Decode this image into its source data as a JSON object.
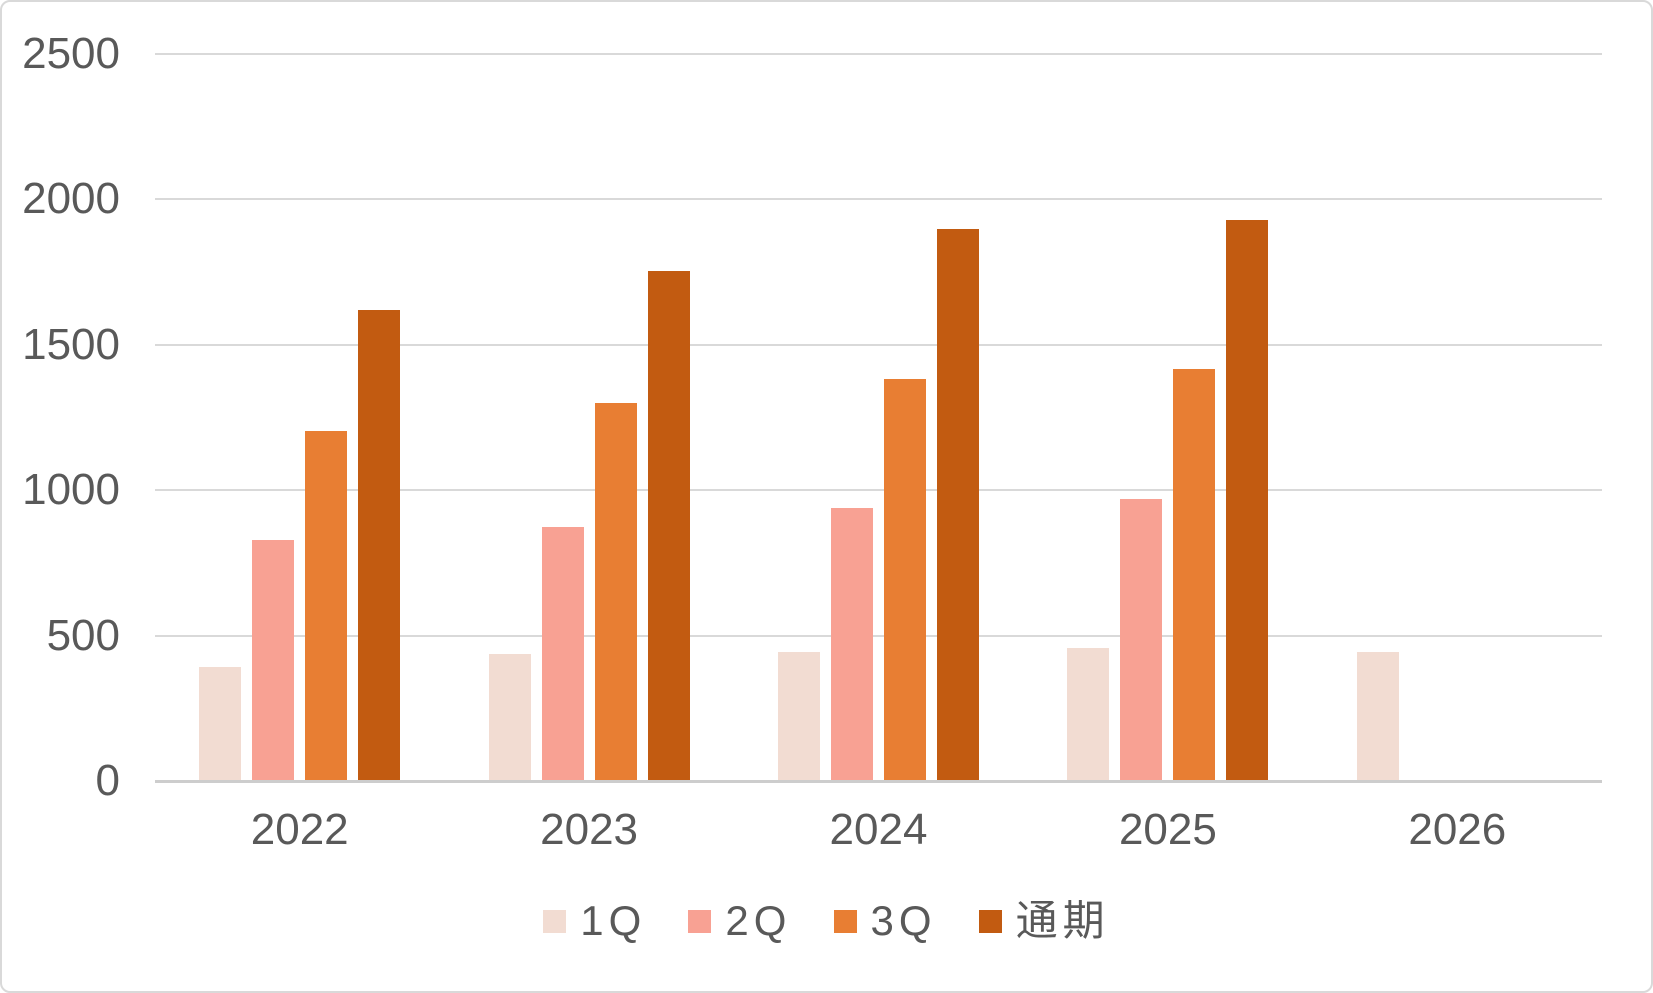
{
  "chart_data": {
    "type": "bar",
    "title": "",
    "categories": [
      "2022",
      "2023",
      "2024",
      "2025",
      "2026"
    ],
    "series": [
      {
        "name": "1Q",
        "color": "#f2dcd2",
        "values": [
          390,
          435,
          440,
          455,
          440
        ]
      },
      {
        "name": "2Q",
        "color": "#f8a193",
        "values": [
          825,
          870,
          935,
          965,
          null
        ]
      },
      {
        "name": "3Q",
        "color": "#e87e33",
        "values": [
          1200,
          1295,
          1380,
          1415,
          null
        ]
      },
      {
        "name": "通期",
        "color": "#c25b11",
        "values": [
          1615,
          1750,
          1895,
          1925,
          null
        ]
      }
    ],
    "ylabel": "",
    "xlabel": "",
    "ylim": [
      0,
      2500
    ],
    "yticks": [
      0,
      500,
      1000,
      1500,
      2000,
      2500
    ],
    "grid": true,
    "legend_position": "bottom"
  },
  "style": {
    "gridline_color": "#d9d9d9",
    "axis_line_color": "#cdcdcd",
    "tick_label_color": "#595959",
    "legend_text_color": "#595959",
    "background_color": "#ffffff",
    "border_color": "#d9d9d9"
  }
}
